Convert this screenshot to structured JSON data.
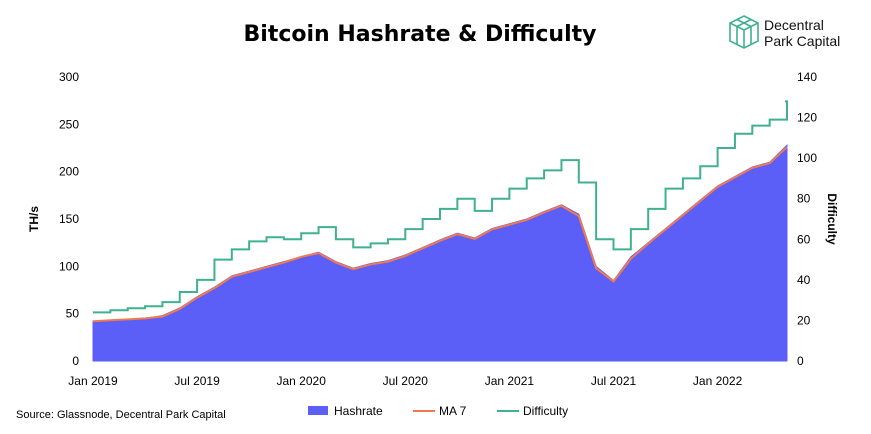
{
  "chart_data": {
    "type": "area",
    "title": "Bitcoin Hashrate & Difficulty",
    "y_left_label": "TH/s",
    "y_right_label": "Difficulty",
    "y_left_ticks": [
      "0",
      "50",
      "100",
      "150",
      "200",
      "250",
      "300"
    ],
    "y_left_range": [
      0,
      300
    ],
    "y_right_ticks": [
      "0",
      "20",
      "40",
      "60",
      "80",
      "100",
      "120",
      "140"
    ],
    "y_right_range": [
      0,
      140
    ],
    "x_tick_labels": [
      "Jan 2019",
      "Jul 2019",
      "Jan 2020",
      "Jul 2020",
      "Jan 2021",
      "Jul 2021",
      "Jan 2022"
    ],
    "x_range": [
      "2019-01",
      "2022-05"
    ],
    "grid": false,
    "legend_position": "bottom",
    "colors": {
      "hashrate": "#5b5ef7",
      "ma7": "#f07a4d",
      "difficulty": "#3fb18f"
    },
    "series": [
      {
        "name": "Hashrate",
        "kind": "area",
        "axis": "left",
        "x": [
          "2019-01",
          "2019-02",
          "2019-03",
          "2019-04",
          "2019-05",
          "2019-06",
          "2019-07",
          "2019-08",
          "2019-09",
          "2019-10",
          "2019-11",
          "2019-12",
          "2020-01",
          "2020-02",
          "2020-03",
          "2020-04",
          "2020-05",
          "2020-06",
          "2020-07",
          "2020-08",
          "2020-09",
          "2020-10",
          "2020-11",
          "2020-12",
          "2021-01",
          "2021-02",
          "2021-03",
          "2021-04",
          "2021-05",
          "2021-06",
          "2021-07",
          "2021-08",
          "2021-09",
          "2021-10",
          "2021-11",
          "2021-12",
          "2022-01",
          "2022-02",
          "2022-03",
          "2022-04",
          "2022-05"
        ],
        "values": [
          42,
          43,
          44,
          45,
          48,
          56,
          68,
          78,
          90,
          95,
          100,
          105,
          110,
          115,
          105,
          98,
          103,
          106,
          112,
          120,
          128,
          135,
          130,
          140,
          145,
          150,
          158,
          165,
          155,
          100,
          85,
          110,
          125,
          140,
          155,
          170,
          185,
          195,
          205,
          210,
          228
        ]
      },
      {
        "name": "MA 7",
        "kind": "line",
        "axis": "left",
        "x": [
          "2019-01",
          "2019-02",
          "2019-03",
          "2019-04",
          "2019-05",
          "2019-06",
          "2019-07",
          "2019-08",
          "2019-09",
          "2019-10",
          "2019-11",
          "2019-12",
          "2020-01",
          "2020-02",
          "2020-03",
          "2020-04",
          "2020-05",
          "2020-06",
          "2020-07",
          "2020-08",
          "2020-09",
          "2020-10",
          "2020-11",
          "2020-12",
          "2021-01",
          "2021-02",
          "2021-03",
          "2021-04",
          "2021-05",
          "2021-06",
          "2021-07",
          "2021-08",
          "2021-09",
          "2021-10",
          "2021-11",
          "2021-12",
          "2022-01",
          "2022-02",
          "2022-03",
          "2022-04",
          "2022-05"
        ],
        "values": [
          42,
          43,
          44,
          45,
          47,
          55,
          67,
          77,
          89,
          94,
          99,
          104,
          110,
          114,
          104,
          97,
          102,
          105,
          111,
          119,
          127,
          134,
          129,
          139,
          144,
          149,
          157,
          164,
          153,
          98,
          84,
          108,
          124,
          139,
          154,
          169,
          184,
          194,
          204,
          209,
          226
        ]
      },
      {
        "name": "Difficulty",
        "kind": "step",
        "axis": "right",
        "x": [
          "2019-01",
          "2019-02",
          "2019-03",
          "2019-04",
          "2019-05",
          "2019-06",
          "2019-07",
          "2019-08",
          "2019-09",
          "2019-10",
          "2019-11",
          "2019-12",
          "2020-01",
          "2020-02",
          "2020-03",
          "2020-04",
          "2020-05",
          "2020-06",
          "2020-07",
          "2020-08",
          "2020-09",
          "2020-10",
          "2020-11",
          "2020-12",
          "2021-01",
          "2021-02",
          "2021-03",
          "2021-04",
          "2021-05",
          "2021-06",
          "2021-07",
          "2021-08",
          "2021-09",
          "2021-10",
          "2021-11",
          "2021-12",
          "2022-01",
          "2022-02",
          "2022-03",
          "2022-04",
          "2022-05"
        ],
        "values": [
          24,
          25,
          26,
          27,
          29,
          34,
          40,
          50,
          55,
          59,
          61,
          60,
          63,
          66,
          60,
          56,
          58,
          60,
          65,
          70,
          75,
          80,
          74,
          80,
          85,
          90,
          94,
          99,
          88,
          60,
          55,
          65,
          75,
          85,
          90,
          96,
          105,
          112,
          116,
          119,
          128
        ]
      }
    ]
  }
}
